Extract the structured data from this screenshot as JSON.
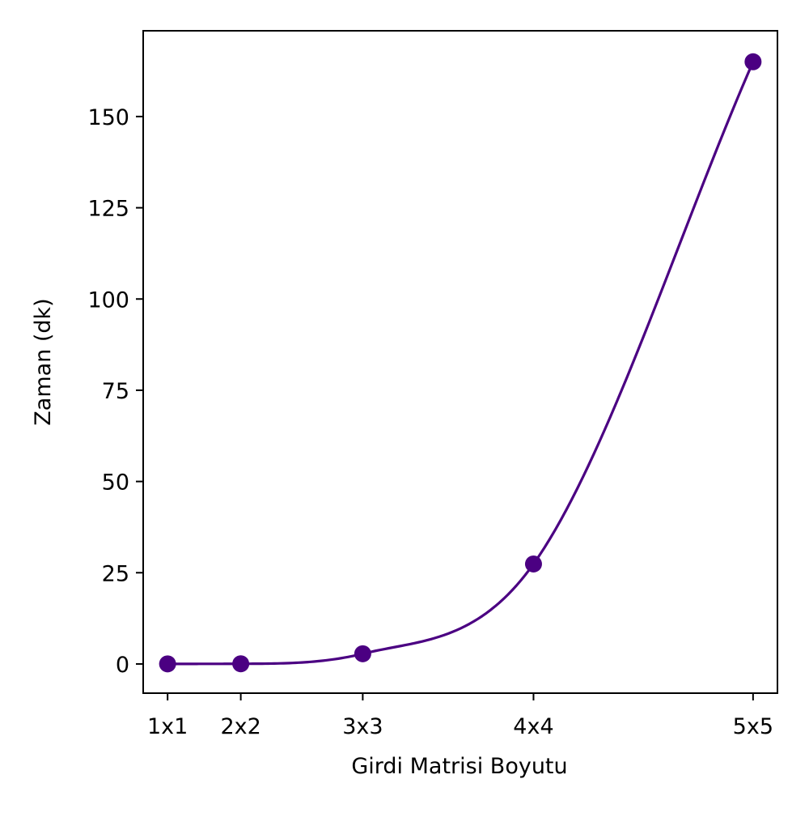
{
  "chart_data": {
    "type": "line",
    "title": "",
    "xlabel": "Girdi Matrisi Boyutu",
    "ylabel": "Zaman (dk)",
    "x_positions": [
      1,
      1.6,
      2.6,
      4,
      5.8
    ],
    "x_labels": [
      "1x1",
      "2x2",
      "3x3",
      "4x4",
      "5x5"
    ],
    "y_values": [
      0.02,
      0.05,
      2.8,
      27.4,
      165
    ],
    "xlim": [
      0.8,
      6.0
    ],
    "ylim": [
      -8,
      173.5
    ],
    "yticks": [
      0,
      25,
      50,
      75,
      100,
      125,
      150
    ],
    "grid": false,
    "series": [
      {
        "color": "#4b0082",
        "marker": "circle",
        "smooth_curve": true
      }
    ]
  }
}
